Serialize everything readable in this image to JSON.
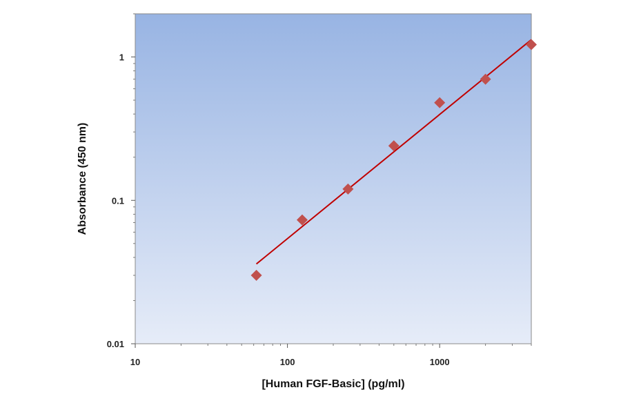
{
  "chart_data": {
    "type": "scatter",
    "title": "",
    "xlabel": "[Human FGF-Basic] (pg/ml)",
    "ylabel": "Absorbance (450 nm)",
    "x_scale": "log",
    "y_scale": "log",
    "xlim": [
      10,
      4000
    ],
    "ylim": [
      0.01,
      2
    ],
    "x_ticks": [
      10,
      100,
      1000
    ],
    "x_tick_labels": [
      "10",
      "100",
      "1000"
    ],
    "y_ticks": [
      0.01,
      0.1,
      1
    ],
    "y_tick_labels": [
      "0.01",
      "0.1",
      "1"
    ],
    "grid": false,
    "legend": "none",
    "series": [
      {
        "marker": "diamond",
        "color": "#c0504d",
        "x": [
          62.5,
          125,
          250,
          500,
          1000,
          2000,
          4000
        ],
        "y": [
          0.03,
          0.073,
          0.12,
          0.24,
          0.48,
          0.7,
          1.22
        ]
      }
    ],
    "fit_line": {
      "color": "#c00000",
      "x": [
        62.5,
        4000
      ],
      "y": [
        0.036,
        1.32
      ]
    },
    "colors": {
      "plot_background_top": "#98b4e3",
      "plot_background_bottom": "#e6ecf8"
    }
  }
}
